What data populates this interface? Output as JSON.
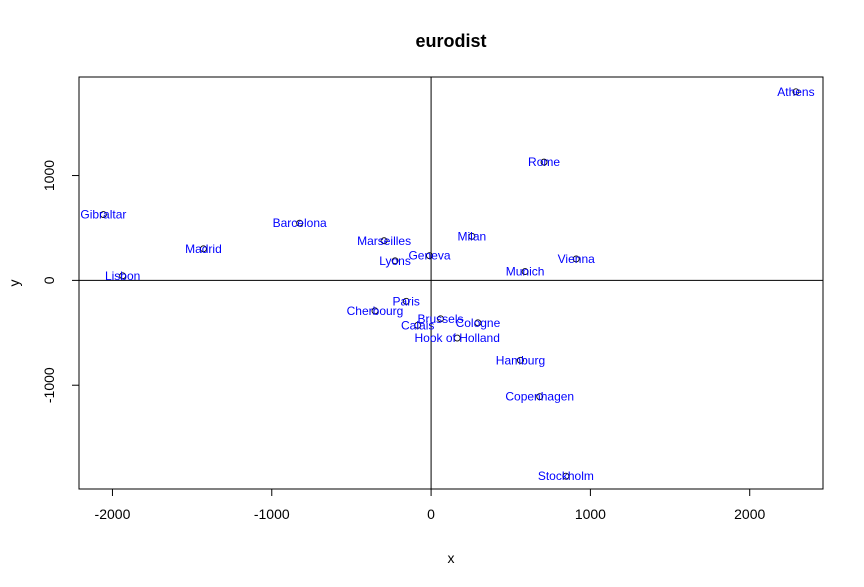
{
  "chart_data": {
    "type": "scatter",
    "title": "eurodist",
    "xlabel": "x",
    "ylabel": "y",
    "xlim": [
      -2210,
      2460
    ],
    "ylim": [
      -1990,
      1940
    ],
    "xticks": [
      -2000,
      -1000,
      0,
      1000,
      2000
    ],
    "yticks": [
      -1000,
      0,
      1000
    ],
    "reference_lines": {
      "x": 0,
      "y": 0
    },
    "point_color": "#000000",
    "label_color": "#0000ff",
    "points": [
      {
        "name": "Athens",
        "x": 2290,
        "y": 1799
      },
      {
        "name": "Barcelona",
        "x": -825,
        "y": 546
      },
      {
        "name": "Brussels",
        "x": 59,
        "y": -367
      },
      {
        "name": "Calais",
        "x": -84,
        "y": -429
      },
      {
        "name": "Cherbourg",
        "x": -352,
        "y": -291
      },
      {
        "name": "Cologne",
        "x": 294,
        "y": -405
      },
      {
        "name": "Copenhagen",
        "x": 682,
        "y": -1109
      },
      {
        "name": "Geneva",
        "x": -10,
        "y": 236
      },
      {
        "name": "Gibraltar",
        "x": -2057,
        "y": 628
      },
      {
        "name": "Hamburg",
        "x": 561,
        "y": -762
      },
      {
        "name": "Hook of Holland",
        "x": 164,
        "y": -550
      },
      {
        "name": "Lisbon",
        "x": -1936,
        "y": 44
      },
      {
        "name": "Lyons",
        "x": -226,
        "y": 187
      },
      {
        "name": "Madrid",
        "x": -1429,
        "y": 301
      },
      {
        "name": "Marseilles",
        "x": -295,
        "y": 378
      },
      {
        "name": "Milan",
        "x": 256,
        "y": 420
      },
      {
        "name": "Munich",
        "x": 590,
        "y": 84
      },
      {
        "name": "Paris",
        "x": -156,
        "y": -200
      },
      {
        "name": "Rome",
        "x": 709,
        "y": 1128
      },
      {
        "name": "Stockholm",
        "x": 846,
        "y": -1868
      },
      {
        "name": "Vienna",
        "x": 911,
        "y": 205
      }
    ]
  }
}
